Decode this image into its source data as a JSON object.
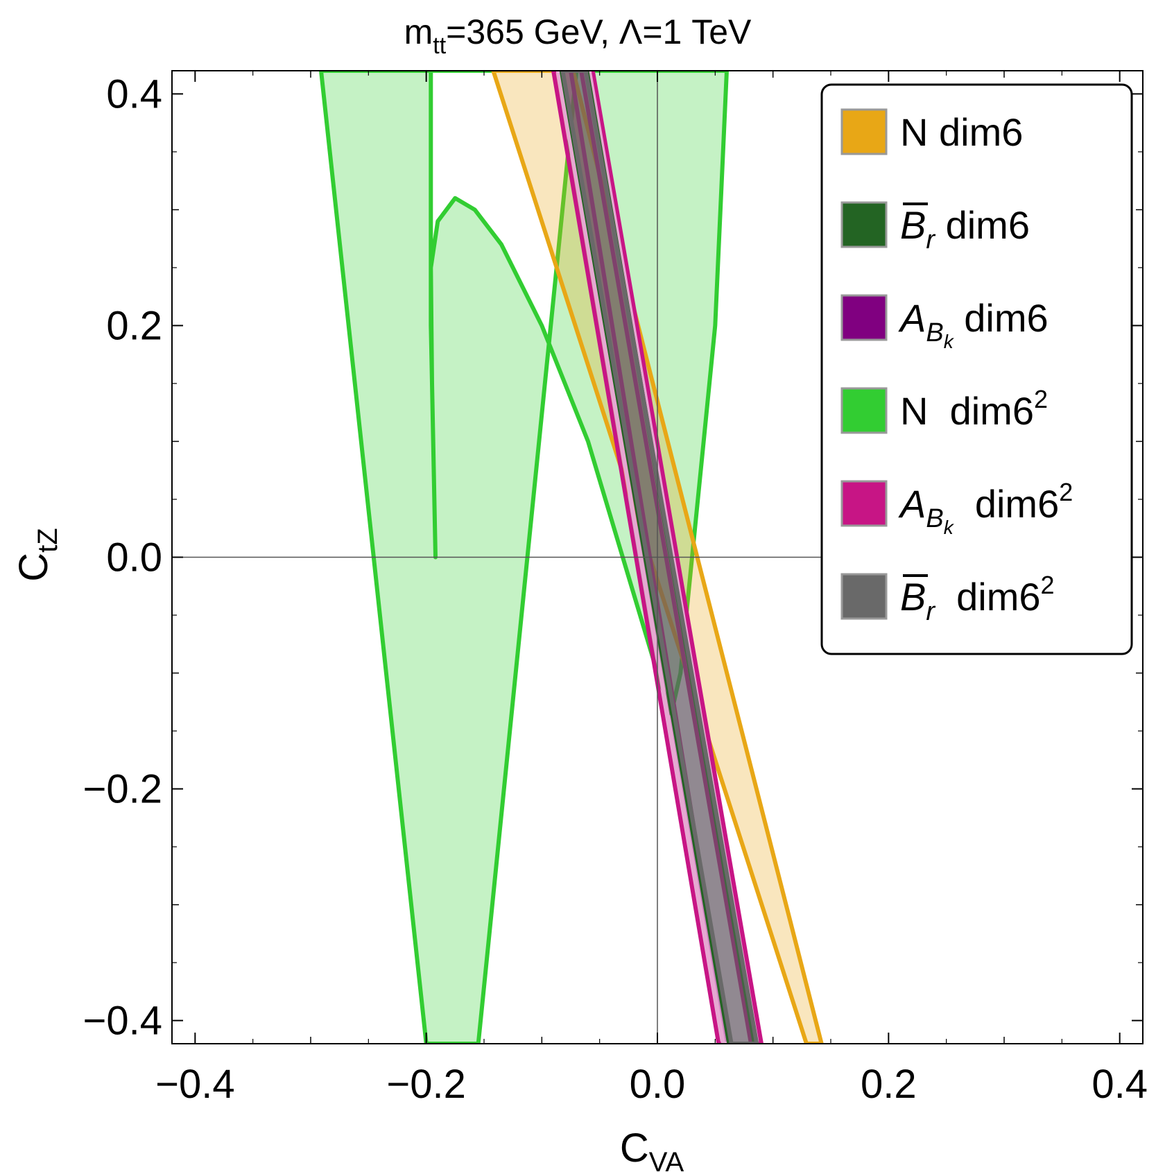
{
  "chart_data": {
    "type": "region",
    "title": {
      "main": "m",
      "main_sub": "tt",
      "rest": "=365 GeV, Λ=1 TeV"
    },
    "xlabel": {
      "main": "C",
      "sub": "VA"
    },
    "ylabel": {
      "main": "C",
      "sub": "tZ"
    },
    "xlim": [
      -0.42,
      0.42
    ],
    "ylim": [
      -0.42,
      0.42
    ],
    "x_ticks": [
      -0.4,
      -0.2,
      0.0,
      0.2,
      0.4
    ],
    "y_ticks": [
      -0.4,
      -0.2,
      0.0,
      0.2,
      0.4
    ],
    "x_tick_labels": [
      "−0.4",
      "−0.2",
      "0.0",
      "0.2",
      "0.4"
    ],
    "y_tick_labels": [
      "−0.4",
      "−0.2",
      "0.0",
      "0.2",
      "0.4"
    ],
    "grid": false,
    "zero_lines": true,
    "legend_position": "top-right",
    "legend": [
      {
        "base": "N",
        "base_italic": false,
        "bar": false,
        "sub": "",
        "subsub": "",
        "text": "dim6",
        "sup": "",
        "color": "#E8A716"
      },
      {
        "base": "B",
        "base_italic": true,
        "bar": true,
        "sub": "r",
        "subsub": "",
        "text": "dim6",
        "sup": "",
        "color": "#236423"
      },
      {
        "base": "A",
        "base_italic": true,
        "bar": false,
        "sub": "B",
        "subsub": "k",
        "text": "dim6",
        "sup": "",
        "color": "#800080"
      },
      {
        "base": "N",
        "base_italic": false,
        "bar": false,
        "sub": "",
        "subsub": "",
        "text": "dim6",
        "sup": "2",
        "color": "#32CD32"
      },
      {
        "base": "A",
        "base_italic": true,
        "bar": false,
        "sub": "B",
        "subsub": "k",
        "text": "dim6",
        "sup": "2",
        "color": "#C71585"
      },
      {
        "base": "B",
        "base_italic": true,
        "bar": true,
        "sub": "r",
        "subsub": "",
        "text": "dim6",
        "sup": "2",
        "color": "#696969"
      }
    ],
    "regions": [
      {
        "name": "N dim6²",
        "color": "#32CD32",
        "fill": "#C5F2C5",
        "fill_opacity": 1,
        "outer": [
          [
            -0.291,
            0.42
          ],
          [
            -0.2,
            -0.42
          ],
          [
            -0.155,
            -0.42
          ],
          [
            -0.07,
            0.42
          ]
        ],
        "hole": [
          [
            -0.175,
            0.31
          ],
          [
            -0.158,
            0.3
          ],
          [
            -0.135,
            0.27
          ],
          [
            -0.1,
            0.2
          ],
          [
            -0.06,
            0.1
          ],
          [
            -0.03,
            0.0
          ],
          [
            0.0,
            -0.1
          ],
          [
            0.012,
            -0.135
          ],
          [
            0.02,
            -0.1
          ],
          [
            0.03,
            0.0
          ],
          [
            0.04,
            0.1
          ],
          [
            0.05,
            0.2
          ],
          [
            0.06,
            0.42
          ],
          [
            -0.196,
            0.42
          ],
          [
            -0.196,
            0.2
          ],
          [
            -0.194,
            0.1
          ],
          [
            -0.192,
            0.0
          ],
          [
            -0.195,
            0.15
          ],
          [
            -0.196,
            0.25
          ],
          [
            -0.19,
            0.29
          ]
        ]
      },
      {
        "name": "N dim6",
        "color": "#E8A716",
        "fill": "#E8A716",
        "fill_opacity": 0.28,
        "outer": [
          [
            -0.142,
            0.42
          ],
          [
            0.129,
            -0.42
          ],
          [
            0.142,
            -0.42
          ],
          [
            -0.073,
            0.42
          ]
        ]
      },
      {
        "name": "A_Bk dim6²",
        "color": "#C71585",
        "fill": "#C71585",
        "fill_opacity": 0.3,
        "outer": [
          [
            -0.09,
            0.42
          ],
          [
            0.053,
            -0.42
          ],
          [
            0.062,
            -0.42
          ],
          [
            -0.075,
            0.42
          ]
        ]
      },
      {
        "name": "A_Bk dim6² (right band)",
        "color": "#C71585",
        "fill": "#C71585",
        "fill_opacity": 0.3,
        "outer": [
          [
            -0.066,
            0.42
          ],
          [
            0.081,
            -0.42
          ],
          [
            0.09,
            -0.42
          ],
          [
            -0.056,
            0.42
          ]
        ]
      },
      {
        "name": "A_Bk dim6",
        "color": "#E6A8D2",
        "fill": "#800080",
        "fill_opacity": 0.28,
        "outer": [
          [
            -0.086,
            0.42
          ],
          [
            0.057,
            -0.42
          ],
          [
            0.086,
            -0.42
          ],
          [
            -0.059,
            0.42
          ]
        ]
      },
      {
        "name": "B̄r dim6",
        "color": "#236423",
        "fill": "#236423",
        "fill_opacity": 0.22,
        "outer": [
          [
            -0.083,
            0.42
          ],
          [
            0.062,
            -0.42
          ],
          [
            0.084,
            -0.42
          ],
          [
            -0.061,
            0.42
          ]
        ]
      },
      {
        "name": "B̄r dim6²",
        "color": "#696969",
        "fill": "#696969",
        "fill_opacity": 0.45,
        "outer": [
          [
            -0.082,
            0.42
          ],
          [
            0.064,
            -0.42
          ],
          [
            0.086,
            -0.42
          ],
          [
            -0.062,
            0.42
          ]
        ]
      }
    ]
  }
}
